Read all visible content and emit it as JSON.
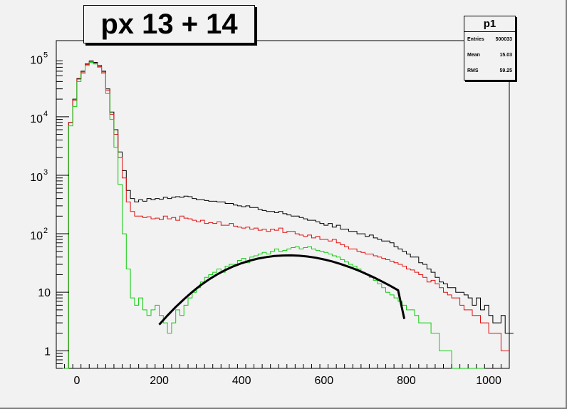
{
  "title": "px 13 + 14",
  "stats": {
    "name": "p1",
    "rows": [
      {
        "label": "Entries",
        "value": "500033"
      },
      {
        "label": "Mean",
        "value": "15.03"
      },
      {
        "label": "RMS",
        "value": "59.25"
      }
    ]
  },
  "chart_data": {
    "type": "line",
    "title": "px 13 + 14",
    "xlabel": "",
    "ylabel": "",
    "xlim": [
      -50,
      1050
    ],
    "ylim": [
      0.5,
      200000
    ],
    "log_y": true,
    "grid": false,
    "bin_width": 10,
    "x_ticks": [
      0,
      200,
      400,
      600,
      800,
      1000
    ],
    "x_tick_labels": [
      "0",
      "200",
      "400",
      "600",
      "800",
      "1000"
    ],
    "y_ticks": [
      {
        "value": 1,
        "base": "1",
        "exp": ""
      },
      {
        "value": 10,
        "base": "10",
        "exp": ""
      },
      {
        "value": 100,
        "base": "10",
        "exp": "2"
      },
      {
        "value": 1000,
        "base": "10",
        "exp": "3"
      },
      {
        "value": 10000,
        "base": "10",
        "exp": "4"
      },
      {
        "value": 100000,
        "base": "10",
        "exp": "5"
      }
    ],
    "series": [
      {
        "color": "#000000",
        "x_start": -50,
        "values": [
          0.3,
          0.3,
          0.3,
          8000,
          20000,
          45000,
          60000,
          80000,
          90000,
          85000,
          75000,
          60000,
          30000,
          12000,
          6000,
          2500,
          1200,
          550,
          400,
          350,
          380,
          360,
          400,
          380,
          400,
          390,
          420,
          400,
          420,
          430,
          420,
          440,
          430,
          400,
          380,
          380,
          370,
          360,
          360,
          350,
          350,
          330,
          330,
          310,
          300,
          290,
          300,
          280,
          280,
          260,
          250,
          240,
          240,
          230,
          240,
          220,
          210,
          200,
          200,
          190,
          180,
          170,
          170,
          160,
          150,
          140,
          150,
          130,
          140,
          120,
          120,
          110,
          110,
          100,
          100,
          90,
          95,
          85,
          80,
          75,
          75,
          70,
          60,
          55,
          50,
          45,
          40,
          40,
          32,
          30,
          25,
          22,
          18,
          15,
          14,
          12,
          12,
          10,
          10,
          9,
          8,
          6,
          8,
          5,
          6,
          4,
          3,
          3,
          4,
          2,
          2
        ]
      },
      {
        "color": "#e01010",
        "x_start": -50,
        "values": [
          0.3,
          0.3,
          0.3,
          8000,
          19000,
          44000,
          58000,
          78000,
          88000,
          82000,
          72000,
          58000,
          28000,
          11000,
          5000,
          2000,
          900,
          350,
          240,
          200,
          200,
          190,
          195,
          180,
          185,
          175,
          200,
          180,
          190,
          170,
          200,
          185,
          180,
          170,
          160,
          170,
          150,
          155,
          150,
          160,
          140,
          140,
          150,
          135,
          130,
          125,
          130,
          120,
          125,
          115,
          120,
          110,
          120,
          115,
          125,
          105,
          110,
          110,
          100,
          95,
          90,
          95,
          85,
          90,
          80,
          80,
          75,
          80,
          70,
          65,
          60,
          55,
          55,
          50,
          48,
          45,
          45,
          42,
          40,
          38,
          36,
          34,
          32,
          30,
          28,
          25,
          24,
          22,
          20,
          18,
          15,
          16,
          14,
          12,
          10,
          9,
          8,
          8,
          6,
          5,
          5,
          4,
          4,
          3,
          3,
          2,
          2,
          2,
          1,
          1
        ]
      },
      {
        "color": "#10cc10",
        "x_start": -50,
        "values": [
          0.3,
          0.3,
          0.3,
          7000,
          15000,
          40000,
          55000,
          75000,
          85000,
          80000,
          70000,
          55000,
          25000,
          9000,
          3000,
          700,
          100,
          25,
          8,
          6,
          8,
          5,
          4,
          5,
          6,
          4,
          3,
          2,
          3,
          5,
          4,
          6,
          8,
          10,
          12,
          15,
          18,
          20,
          22,
          25,
          22,
          28,
          30,
          30,
          35,
          38,
          32,
          40,
          42,
          45,
          48,
          45,
          50,
          55,
          50,
          52,
          55,
          58,
          60,
          55,
          58,
          60,
          55,
          52,
          50,
          48,
          45,
          42,
          40,
          36,
          33,
          30,
          28,
          25,
          22,
          20,
          18,
          16,
          14,
          12,
          10,
          9,
          8,
          7,
          6,
          5,
          5,
          4,
          3,
          3,
          3,
          2,
          2,
          1,
          1,
          1,
          0.3,
          0.3,
          0.3,
          0.3,
          0.3,
          0.3,
          0.3,
          0.3
        ]
      }
    ],
    "fit": {
      "color": "#000000",
      "x_start": 200,
      "x_step": 20,
      "values": [
        2.8,
        4.0,
        5.6,
        7.6,
        10.1,
        13.1,
        16.4,
        20.1,
        23.9,
        27.7,
        31.4,
        34.7,
        37.6,
        39.9,
        41.6,
        42.5,
        42.7,
        42.1,
        40.8,
        38.9,
        36.4,
        33.6,
        30.5,
        27.3,
        24.1,
        21.0,
        18.1,
        15.4,
        13.0,
        10.8,
        3.5
      ]
    }
  }
}
